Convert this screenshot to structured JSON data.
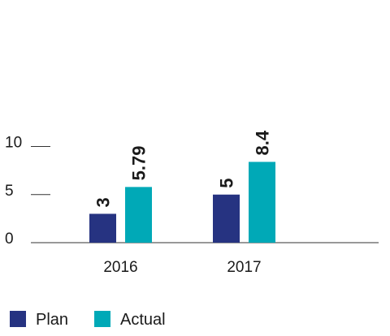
{
  "chart_data": {
    "type": "bar",
    "categories": [
      "2016",
      "2017"
    ],
    "series": [
      {
        "name": "Plan",
        "values": [
          3,
          5
        ],
        "value_labels": [
          "3",
          "5"
        ],
        "color": "#263381"
      },
      {
        "name": "Actual",
        "values": [
          5.79,
          8.4
        ],
        "value_labels": [
          "5.79",
          "8.4"
        ],
        "color": "#00a9b7"
      }
    ],
    "yticks": [
      "0",
      "5",
      "10"
    ],
    "ylim": [
      0,
      10.8
    ],
    "grid": false,
    "legend_position": "bottom-left",
    "title": "",
    "xlabel": "",
    "ylabel": ""
  }
}
